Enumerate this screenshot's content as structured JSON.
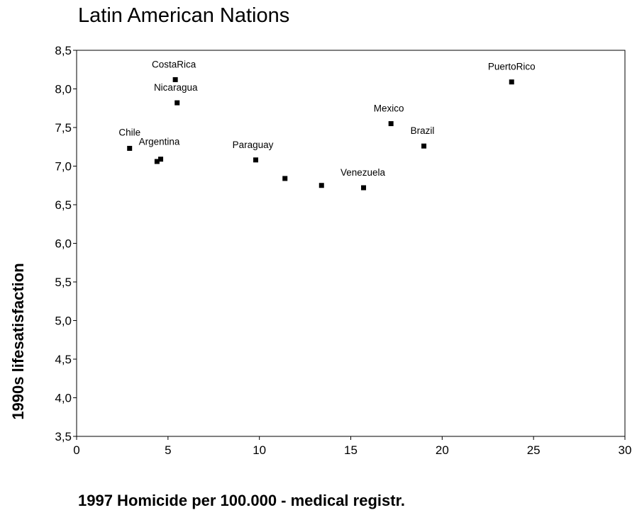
{
  "chart_data": {
    "type": "scatter",
    "title": "Latin American Nations",
    "xlabel": "1997 Homicide per 100.000 - medical registr.",
    "ylabel": "1990s lifesatisfaction",
    "xlim": [
      0,
      30
    ],
    "ylim": [
      3.5,
      8.5
    ],
    "xticks": [
      "0",
      "5",
      "10",
      "15",
      "20",
      "25",
      "30"
    ],
    "yticks": [
      "3,5",
      "4,0",
      "4,5",
      "5,0",
      "5,5",
      "6,0",
      "6,5",
      "7,0",
      "7,5",
      "8,0",
      "8,5"
    ],
    "grid": false,
    "marker_color": "#000000",
    "points": [
      {
        "x": 2.9,
        "y": 7.23,
        "label": "Chile"
      },
      {
        "x": 4.4,
        "y": 7.06,
        "label": ""
      },
      {
        "x": 4.6,
        "y": 7.09,
        "label": "Argentina"
      },
      {
        "x": 5.4,
        "y": 8.12,
        "label": "CostaRica"
      },
      {
        "x": 5.5,
        "y": 7.82,
        "label": "Nicaragua"
      },
      {
        "x": 9.8,
        "y": 7.08,
        "label": "Paraguay"
      },
      {
        "x": 11.4,
        "y": 6.84,
        "label": ""
      },
      {
        "x": 13.4,
        "y": 6.75,
        "label": ""
      },
      {
        "x": 15.7,
        "y": 6.72,
        "label": "Venezuela"
      },
      {
        "x": 17.2,
        "y": 7.55,
        "label": "Mexico"
      },
      {
        "x": 19.0,
        "y": 7.26,
        "label": "Brazil"
      },
      {
        "x": 23.8,
        "y": 8.09,
        "label": "PuertoRico"
      }
    ]
  }
}
